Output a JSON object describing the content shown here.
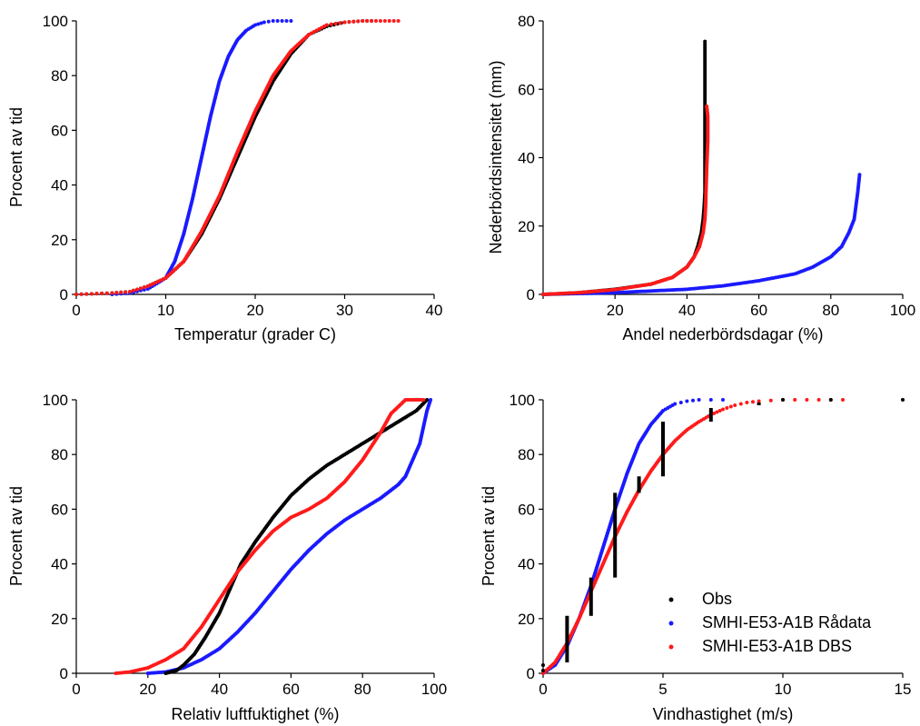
{
  "colors": {
    "obs": "#000000",
    "raw": "#1a1aff",
    "dbs": "#ff1a1a"
  },
  "chart_data": [
    {
      "type": "scatter",
      "xlabel": "Temperatur (grader C)",
      "ylabel": "Procent av tid",
      "xlim": [
        0,
        40
      ],
      "ylim": [
        0,
        100
      ],
      "xticks": [
        "0",
        "10",
        "20",
        "30",
        "40"
      ],
      "yticks": [
        "0",
        "20",
        "40",
        "60",
        "80",
        "100"
      ],
      "series": [
        {
          "key": "obs",
          "points": [
            [
              0,
              0
            ],
            [
              4,
              0.5
            ],
            [
              6,
              1
            ],
            [
              8,
              3
            ],
            [
              10,
              6
            ],
            [
              12,
              12
            ],
            [
              14,
              22
            ],
            [
              16,
              35
            ],
            [
              18,
              50
            ],
            [
              20,
              65
            ],
            [
              22,
              78
            ],
            [
              24,
              88
            ],
            [
              26,
              95
            ],
            [
              28,
              98
            ],
            [
              30,
              99.5
            ],
            [
              32,
              100
            ],
            [
              33,
              100
            ]
          ]
        },
        {
          "key": "raw",
          "points": [
            [
              4,
              0
            ],
            [
              6,
              0.5
            ],
            [
              8,
              2
            ],
            [
              10,
              6
            ],
            [
              11,
              12
            ],
            [
              12,
              22
            ],
            [
              13,
              35
            ],
            [
              14,
              50
            ],
            [
              15,
              65
            ],
            [
              16,
              78
            ],
            [
              17,
              87
            ],
            [
              18,
              93
            ],
            [
              19,
              96.5
            ],
            [
              20,
              98.5
            ],
            [
              21,
              99.5
            ],
            [
              22,
              100
            ],
            [
              24,
              100
            ]
          ]
        },
        {
          "key": "dbs",
          "points": [
            [
              0,
              0
            ],
            [
              4,
              0.5
            ],
            [
              6,
              1
            ],
            [
              8,
              3
            ],
            [
              10,
              6
            ],
            [
              12,
              12
            ],
            [
              14,
              23
            ],
            [
              16,
              36
            ],
            [
              18,
              52
            ],
            [
              20,
              67
            ],
            [
              22,
              80
            ],
            [
              24,
              89
            ],
            [
              26,
              95
            ],
            [
              28,
              98.5
            ],
            [
              30,
              99.5
            ],
            [
              32,
              100
            ],
            [
              34,
              100
            ],
            [
              36,
              100
            ]
          ]
        }
      ]
    },
    {
      "type": "scatter",
      "xlabel": "Andel nederbördsdagar (%)",
      "ylabel": "Nederbördsintensitet (mm)",
      "xlim": [
        0,
        100
      ],
      "ylim": [
        0,
        80
      ],
      "xticks": [
        "20",
        "40",
        "60",
        "80",
        "100"
      ],
      "yticks": [
        "0",
        "20",
        "40",
        "60",
        "80"
      ],
      "series": [
        {
          "key": "raw",
          "points": [
            [
              0,
              0
            ],
            [
              20,
              0.5
            ],
            [
              40,
              1.5
            ],
            [
              50,
              2.5
            ],
            [
              60,
              4
            ],
            [
              70,
              6
            ],
            [
              75,
              8
            ],
            [
              80,
              11
            ],
            [
              83,
              14
            ],
            [
              85,
              18
            ],
            [
              86.5,
              22
            ],
            [
              87,
              26
            ],
            [
              87.5,
              30
            ],
            [
              88,
              35
            ]
          ]
        },
        {
          "key": "obs",
          "points": [
            [
              0,
              0
            ],
            [
              10,
              0.5
            ],
            [
              20,
              1.5
            ],
            [
              30,
              3
            ],
            [
              36,
              5
            ],
            [
              40,
              8
            ],
            [
              42,
              11
            ],
            [
              43,
              14
            ],
            [
              44,
              18
            ],
            [
              44.5,
              22
            ],
            [
              44.8,
              26
            ],
            [
              45,
              30
            ],
            [
              45,
              37
            ],
            [
              45,
              45
            ],
            [
              45,
              50
            ],
            [
              45,
              74
            ]
          ]
        },
        {
          "key": "dbs",
          "points": [
            [
              0,
              0
            ],
            [
              10,
              0.5
            ],
            [
              20,
              1.4
            ],
            [
              30,
              3
            ],
            [
              36,
              5
            ],
            [
              40,
              8
            ],
            [
              42,
              11
            ],
            [
              43.5,
              14
            ],
            [
              44.5,
              18
            ],
            [
              45,
              22
            ],
            [
              45.2,
              26
            ],
            [
              45.3,
              30
            ],
            [
              45.5,
              37
            ],
            [
              45.8,
              45
            ],
            [
              45.8,
              52
            ],
            [
              45.5,
              55
            ]
          ]
        }
      ]
    },
    {
      "type": "scatter",
      "xlabel": "Relativ luftfuktighet (%)",
      "ylabel": "Procent av tid",
      "xlim": [
        0,
        100
      ],
      "ylim": [
        0,
        100
      ],
      "xticks": [
        "0",
        "20",
        "40",
        "60",
        "80",
        "100"
      ],
      "yticks": [
        "0",
        "20",
        "40",
        "60",
        "80",
        "100"
      ],
      "series": [
        {
          "key": "raw",
          "points": [
            [
              20,
              0
            ],
            [
              25,
              0.5
            ],
            [
              30,
              2
            ],
            [
              35,
              5
            ],
            [
              40,
              9
            ],
            [
              45,
              15
            ],
            [
              50,
              22
            ],
            [
              55,
              30
            ],
            [
              60,
              38
            ],
            [
              65,
              45
            ],
            [
              70,
              51
            ],
            [
              75,
              56
            ],
            [
              80,
              60
            ],
            [
              85,
              64
            ],
            [
              88,
              67
            ],
            [
              90,
              69
            ],
            [
              92,
              72
            ],
            [
              94,
              78
            ],
            [
              96,
              84
            ],
            [
              97,
              90
            ],
            [
              98,
              96
            ],
            [
              99,
              100
            ]
          ]
        },
        {
          "key": "obs",
          "points": [
            [
              25,
              0
            ],
            [
              28,
              1
            ],
            [
              30,
              3
            ],
            [
              33,
              7
            ],
            [
              36,
              13
            ],
            [
              40,
              22
            ],
            [
              43,
              31
            ],
            [
              46,
              40
            ],
            [
              50,
              48
            ],
            [
              55,
              57
            ],
            [
              60,
              65
            ],
            [
              65,
              71
            ],
            [
              70,
              76
            ],
            [
              75,
              80
            ],
            [
              80,
              84
            ],
            [
              85,
              88
            ],
            [
              90,
              92
            ],
            [
              95,
              96
            ],
            [
              98,
              100
            ]
          ]
        },
        {
          "key": "dbs",
          "points": [
            [
              11,
              0
            ],
            [
              15,
              0.5
            ],
            [
              20,
              2
            ],
            [
              25,
              5
            ],
            [
              30,
              9
            ],
            [
              35,
              17
            ],
            [
              40,
              27
            ],
            [
              45,
              37
            ],
            [
              50,
              45
            ],
            [
              55,
              52
            ],
            [
              60,
              57
            ],
            [
              65,
              60
            ],
            [
              70,
              64
            ],
            [
              75,
              70
            ],
            [
              80,
              78
            ],
            [
              85,
              88
            ],
            [
              88,
              95
            ],
            [
              92,
              100
            ],
            [
              97,
              100
            ]
          ]
        }
      ]
    },
    {
      "type": "scatter",
      "xlabel": "Vindhastighet (m/s)",
      "ylabel": "Procent av tid",
      "xlim": [
        0,
        15
      ],
      "ylim": [
        0,
        100
      ],
      "xticks": [
        "0",
        "5",
        "10",
        "15"
      ],
      "yticks": [
        "0",
        "20",
        "40",
        "60",
        "80",
        "100"
      ],
      "legend": [
        "Obs",
        "SMHI-E53-A1B Rådata",
        "SMHI-E53-A1B DBS"
      ],
      "series": [
        {
          "key": "raw",
          "points": [
            [
              0,
              0
            ],
            [
              0.5,
              3
            ],
            [
              1,
              10
            ],
            [
              1.5,
              20
            ],
            [
              2,
              32
            ],
            [
              2.5,
              46
            ],
            [
              3,
              60
            ],
            [
              3.5,
              73
            ],
            [
              4,
              84
            ],
            [
              4.5,
              91
            ],
            [
              5,
              96
            ],
            [
              5.5,
              98.5
            ],
            [
              6,
              99.5
            ],
            [
              6.5,
              100
            ],
            [
              7.5,
              100
            ]
          ]
        },
        {
          "key": "dbs",
          "points": [
            [
              0,
              0
            ],
            [
              0.5,
              4
            ],
            [
              1,
              11
            ],
            [
              1.5,
              20
            ],
            [
              2,
              30
            ],
            [
              2.5,
              40
            ],
            [
              3,
              50
            ],
            [
              3.5,
              59
            ],
            [
              4,
              67
            ],
            [
              4.5,
              74
            ],
            [
              5,
              80
            ],
            [
              5.5,
              85
            ],
            [
              6,
              89
            ],
            [
              6.5,
              92
            ],
            [
              7,
              94.5
            ],
            [
              7.5,
              96.5
            ],
            [
              8,
              98
            ],
            [
              8.5,
              99
            ],
            [
              9,
              99.5
            ],
            [
              10,
              100
            ],
            [
              11,
              100
            ],
            [
              12.5,
              100
            ]
          ]
        },
        {
          "key": "obs_bars",
          "points": [
            [
              1,
              4,
              21
            ],
            [
              2,
              21,
              35
            ],
            [
              3,
              35,
              66
            ],
            [
              4,
              66,
              72
            ],
            [
              5,
              72,
              92
            ],
            [
              7,
              92,
              97
            ],
            [
              9,
              98,
              99
            ]
          ]
        },
        {
          "key": "obs_pts",
          "points": [
            [
              0,
              1
            ],
            [
              0,
              3
            ],
            [
              10,
              100
            ],
            [
              12,
              100
            ],
            [
              15,
              100
            ]
          ]
        }
      ]
    }
  ]
}
